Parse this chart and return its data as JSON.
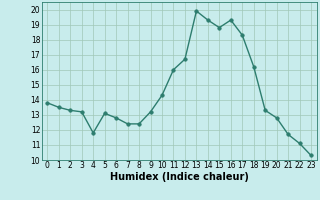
{
  "x": [
    0,
    1,
    2,
    3,
    4,
    5,
    6,
    7,
    8,
    9,
    10,
    11,
    12,
    13,
    14,
    15,
    16,
    17,
    18,
    19,
    20,
    21,
    22,
    23
  ],
  "y": [
    13.8,
    13.5,
    13.3,
    13.2,
    11.8,
    13.1,
    12.8,
    12.4,
    12.4,
    13.2,
    14.3,
    16.0,
    16.7,
    19.9,
    19.3,
    18.8,
    19.3,
    18.3,
    16.2,
    13.3,
    12.8,
    11.7,
    11.1,
    10.3
  ],
  "line_color": "#2d7d6e",
  "marker": "o",
  "markersize": 2.5,
  "linewidth": 1.0,
  "xlabel": "Humidex (Indice chaleur)",
  "xlim": [
    -0.5,
    23.5
  ],
  "ylim": [
    10,
    20.5
  ],
  "yticks": [
    10,
    11,
    12,
    13,
    14,
    15,
    16,
    17,
    18,
    19,
    20
  ],
  "xticks": [
    0,
    1,
    2,
    3,
    4,
    5,
    6,
    7,
    8,
    9,
    10,
    11,
    12,
    13,
    14,
    15,
    16,
    17,
    18,
    19,
    20,
    21,
    22,
    23
  ],
  "bg_color": "#c8ecec",
  "grid_color": "#a0c8b8",
  "tick_fontsize": 5.5,
  "xlabel_fontsize": 7,
  "xlabel_fontweight": "bold"
}
